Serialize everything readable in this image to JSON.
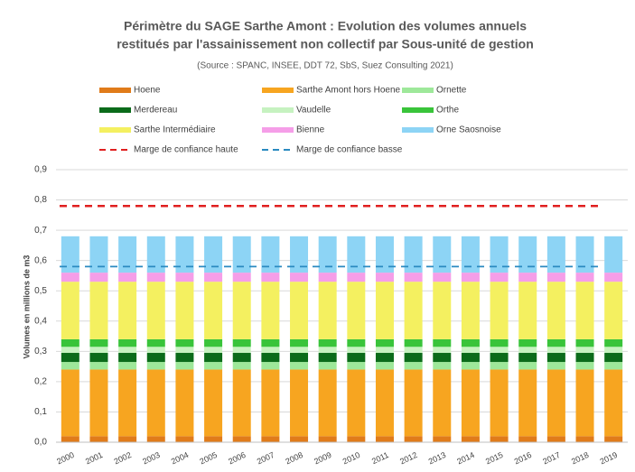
{
  "chart_data": {
    "type": "bar",
    "title": [
      "Périmètre du SAGE Sarthe Amont : Evolution des volumes annuels",
      "restitués par l'assainissement non collectif par Sous-unité de gestion"
    ],
    "subtitle": "(Source : SPANC, INSEE, DDT 72, SbS, Suez Consulting 2021)",
    "y_label": "Volumes en millions de m3",
    "stacked": true,
    "grid": true,
    "categories": [
      "2000",
      "2001",
      "2002",
      "2003",
      "2004",
      "2005",
      "2006",
      "2007",
      "2008",
      "2009",
      "2010",
      "2011",
      "2012",
      "2013",
      "2014",
      "2015",
      "2016",
      "2017",
      "2018",
      "2019"
    ],
    "ylim": [
      0,
      0.9
    ],
    "yticks": [
      {
        "value": 0,
        "label": "0,0"
      },
      {
        "value": 0.1,
        "label": "0,1"
      },
      {
        "value": 0.2,
        "label": "0,2"
      },
      {
        "value": 0.3,
        "label": "0,3"
      },
      {
        "value": 0.4,
        "label": "0,4"
      },
      {
        "value": 0.5,
        "label": "0,5"
      },
      {
        "value": 0.6,
        "label": "0,6"
      },
      {
        "value": 0.7,
        "label": "0,7"
      },
      {
        "value": 0.8,
        "label": "0,8"
      },
      {
        "value": 0.9,
        "label": "0,9"
      }
    ],
    "series": [
      {
        "name": "Hoene",
        "color": "#e07b1a",
        "values": [
          0.02,
          0.02,
          0.02,
          0.02,
          0.02,
          0.02,
          0.02,
          0.02,
          0.02,
          0.02,
          0.02,
          0.02,
          0.02,
          0.02,
          0.02,
          0.02,
          0.02,
          0.02,
          0.02,
          0.02
        ]
      },
      {
        "name": "Sarthe Amont hors Hoene",
        "color": "#f7a520",
        "values": [
          0.22,
          0.22,
          0.22,
          0.22,
          0.22,
          0.22,
          0.22,
          0.22,
          0.22,
          0.22,
          0.22,
          0.22,
          0.22,
          0.22,
          0.22,
          0.22,
          0.22,
          0.22,
          0.22,
          0.22
        ]
      },
      {
        "name": "Ornette",
        "color": "#9ee89a",
        "values": [
          0.025,
          0.025,
          0.025,
          0.025,
          0.025,
          0.025,
          0.025,
          0.025,
          0.025,
          0.025,
          0.025,
          0.025,
          0.025,
          0.025,
          0.025,
          0.025,
          0.025,
          0.025,
          0.025,
          0.025
        ]
      },
      {
        "name": "Merdereau",
        "color": "#0b6b1a",
        "values": [
          0.03,
          0.03,
          0.03,
          0.03,
          0.03,
          0.03,
          0.03,
          0.03,
          0.03,
          0.03,
          0.03,
          0.03,
          0.03,
          0.03,
          0.03,
          0.03,
          0.03,
          0.03,
          0.03,
          0.03
        ]
      },
      {
        "name": "Vaudelle",
        "color": "#c6f2c0",
        "values": [
          0.02,
          0.02,
          0.02,
          0.02,
          0.02,
          0.02,
          0.02,
          0.02,
          0.02,
          0.02,
          0.02,
          0.02,
          0.02,
          0.02,
          0.02,
          0.02,
          0.02,
          0.02,
          0.02,
          0.02
        ]
      },
      {
        "name": "Orthe",
        "color": "#39c43a",
        "values": [
          0.025,
          0.025,
          0.025,
          0.025,
          0.025,
          0.025,
          0.025,
          0.025,
          0.025,
          0.025,
          0.025,
          0.025,
          0.025,
          0.025,
          0.025,
          0.025,
          0.025,
          0.025,
          0.025,
          0.025
        ]
      },
      {
        "name": "Sarthe Intermédiaire",
        "color": "#f4f060",
        "values": [
          0.19,
          0.19,
          0.19,
          0.19,
          0.19,
          0.19,
          0.19,
          0.19,
          0.19,
          0.19,
          0.19,
          0.19,
          0.19,
          0.19,
          0.19,
          0.19,
          0.19,
          0.19,
          0.19,
          0.19
        ]
      },
      {
        "name": "Bienne",
        "color": "#f59ee8",
        "values": [
          0.03,
          0.03,
          0.03,
          0.03,
          0.03,
          0.03,
          0.03,
          0.03,
          0.03,
          0.03,
          0.03,
          0.03,
          0.03,
          0.03,
          0.03,
          0.03,
          0.03,
          0.03,
          0.03,
          0.03
        ]
      },
      {
        "name": "Orne Saosnoise",
        "color": "#8dd4f5",
        "values": [
          0.12,
          0.12,
          0.12,
          0.12,
          0.12,
          0.12,
          0.12,
          0.12,
          0.12,
          0.12,
          0.12,
          0.12,
          0.12,
          0.12,
          0.12,
          0.12,
          0.12,
          0.12,
          0.12,
          0.12
        ]
      }
    ],
    "lines": [
      {
        "name": "Marge de confiance haute",
        "color": "#e02020",
        "dashed": true,
        "values": [
          0.78,
          0.78,
          0.78,
          0.78,
          0.78,
          0.78,
          0.78,
          0.78,
          0.78,
          0.78,
          0.78,
          0.78,
          0.78,
          0.78,
          0.78,
          0.78,
          0.78,
          0.78,
          0.78,
          0.78
        ]
      },
      {
        "name": "Marge de confiance basse",
        "color": "#2a8ac0",
        "dashed": true,
        "values": [
          0.58,
          0.58,
          0.58,
          0.58,
          0.58,
          0.58,
          0.58,
          0.58,
          0.58,
          0.58,
          0.58,
          0.58,
          0.58,
          0.58,
          0.58,
          0.58,
          0.58,
          0.58,
          0.58,
          0.58
        ]
      }
    ]
  }
}
